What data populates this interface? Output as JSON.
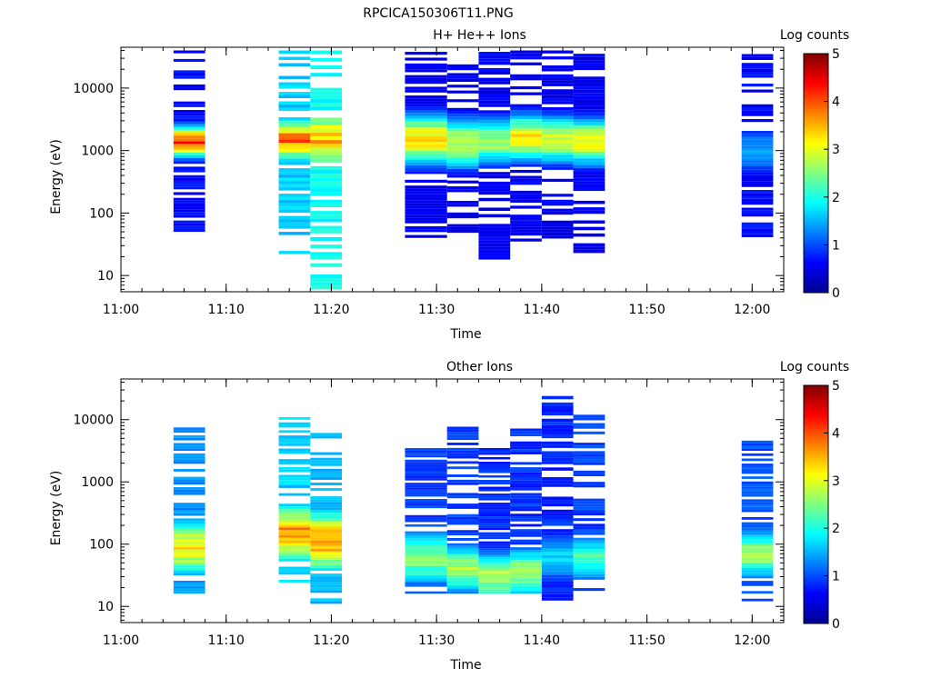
{
  "figure": {
    "title": "RPCICA150306T11.PNG"
  },
  "colors": {
    "colormap": [
      "#00008f",
      "#0000ff",
      "#0080ff",
      "#00ffff",
      "#80ff80",
      "#ffff00",
      "#ff8000",
      "#ff0000",
      "#800000"
    ]
  },
  "chart_data": [
    {
      "type": "heatmap",
      "title": "H+ He++ Ions",
      "xlabel": "Time",
      "ylabel": "Energy (eV)",
      "yscale": "log",
      "ylim": [
        5.5,
        45000
      ],
      "xlim": [
        "11:00",
        "12:03"
      ],
      "x_ticks": [
        "11:00",
        "11:10",
        "11:20",
        "11:30",
        "11:40",
        "11:50",
        "12:00"
      ],
      "y_ticks": [
        "10",
        "100",
        "1000",
        "10000"
      ],
      "colorbar": {
        "label": "Log counts",
        "range": [
          0,
          5
        ],
        "ticks": [
          "0",
          "1",
          "2",
          "3",
          "4",
          "5"
        ]
      },
      "columns": [
        {
          "t0": "11:05",
          "t1": "11:08",
          "elo": 50,
          "ehi": 40000,
          "peak_e": 1400,
          "peak_v": 4.3,
          "width": 0.18,
          "bg": 0.3
        },
        {
          "t0": "11:15",
          "t1": "11:18",
          "elo": 22,
          "ehi": 40000,
          "peak_e": 1500,
          "peak_v": 4.0,
          "width": 0.25,
          "bg": 1.3
        },
        {
          "t0": "11:18",
          "t1": "11:21",
          "elo": 6,
          "ehi": 40000,
          "peak_e": 1500,
          "peak_v": 3.6,
          "width": 0.35,
          "bg": 1.6
        },
        {
          "t0": "11:27",
          "t1": "11:31",
          "elo": 40,
          "ehi": 38000,
          "peak_e": 1500,
          "peak_v": 3.4,
          "width": 0.3,
          "bg": 0.2
        },
        {
          "t0": "11:31",
          "t1": "11:34",
          "elo": 35,
          "ehi": 33000,
          "peak_e": 1300,
          "peak_v": 3.0,
          "width": 0.3,
          "bg": 0.2
        },
        {
          "t0": "11:34",
          "t1": "11:37",
          "elo": 18,
          "ehi": 38000,
          "peak_e": 1400,
          "peak_v": 2.8,
          "width": 0.28,
          "bg": 0.2
        },
        {
          "t0": "11:37",
          "t1": "11:40",
          "elo": 35,
          "ehi": 40000,
          "peak_e": 1600,
          "peak_v": 3.3,
          "width": 0.28,
          "bg": 0.2
        },
        {
          "t0": "11:40",
          "t1": "11:43",
          "elo": 35,
          "ehi": 40000,
          "peak_e": 1500,
          "peak_v": 3.1,
          "width": 0.28,
          "bg": 0.2
        },
        {
          "t0": "11:43",
          "t1": "11:46",
          "elo": 18,
          "ehi": 40000,
          "peak_e": 1400,
          "peak_v": 3.2,
          "width": 0.28,
          "bg": 0.2
        },
        {
          "t0": "11:59",
          "t1": "12:02",
          "elo": 33,
          "ehi": 35000,
          "peak_e": 1000,
          "peak_v": 1.5,
          "width": 0.3,
          "bg": 0.3
        }
      ]
    },
    {
      "type": "heatmap",
      "title": "Other Ions",
      "xlabel": "Time",
      "ylabel": "Energy (eV)",
      "yscale": "log",
      "ylim": [
        5.5,
        45000
      ],
      "xlim": [
        "11:00",
        "12:03"
      ],
      "x_ticks": [
        "11:00",
        "11:10",
        "11:20",
        "11:30",
        "11:40",
        "11:50",
        "12:00"
      ],
      "y_ticks": [
        "10",
        "100",
        "1000",
        "10000"
      ],
      "colorbar": {
        "label": "Log counts",
        "range": [
          0,
          5
        ],
        "ticks": [
          "0",
          "1",
          "2",
          "3",
          "4",
          "5"
        ]
      },
      "columns": [
        {
          "t0": "11:05",
          "t1": "11:08",
          "elo": 16,
          "ehi": 7500,
          "peak_e": 90,
          "peak_v": 3.3,
          "width": 0.35,
          "bg": 1.0
        },
        {
          "t0": "11:15",
          "t1": "11:18",
          "elo": 22,
          "ehi": 11000,
          "peak_e": 150,
          "peak_v": 3.8,
          "width": 0.35,
          "bg": 1.3
        },
        {
          "t0": "11:18",
          "t1": "11:21",
          "elo": 11,
          "ehi": 7500,
          "peak_e": 110,
          "peak_v": 3.9,
          "width": 0.38,
          "bg": 1.2
        },
        {
          "t0": "11:27",
          "t1": "11:31",
          "elo": 16,
          "ehi": 3800,
          "peak_e": 60,
          "peak_v": 2.6,
          "width": 0.35,
          "bg": 0.6
        },
        {
          "t0": "11:31",
          "t1": "11:34",
          "elo": 16,
          "ehi": 8500,
          "peak_e": 40,
          "peak_v": 2.8,
          "width": 0.3,
          "bg": 0.6
        },
        {
          "t0": "11:34",
          "t1": "11:37",
          "elo": 16,
          "ehi": 3500,
          "peak_e": 30,
          "peak_v": 2.9,
          "width": 0.3,
          "bg": 0.5
        },
        {
          "t0": "11:37",
          "t1": "11:40",
          "elo": 16,
          "ehi": 7200,
          "peak_e": 35,
          "peak_v": 2.8,
          "width": 0.3,
          "bg": 0.5
        },
        {
          "t0": "11:40",
          "t1": "11:43",
          "elo": 11,
          "ehi": 24000,
          "peak_e": 60,
          "peak_v": 1.8,
          "width": 0.3,
          "bg": 0.5
        },
        {
          "t0": "11:43",
          "t1": "11:46",
          "elo": 16,
          "ehi": 12000,
          "peak_e": 60,
          "peak_v": 2.3,
          "width": 0.3,
          "bg": 0.6
        },
        {
          "t0": "11:59",
          "t1": "12:02",
          "elo": 11,
          "ehi": 4600,
          "peak_e": 70,
          "peak_v": 2.8,
          "width": 0.3,
          "bg": 0.7
        }
      ]
    }
  ]
}
